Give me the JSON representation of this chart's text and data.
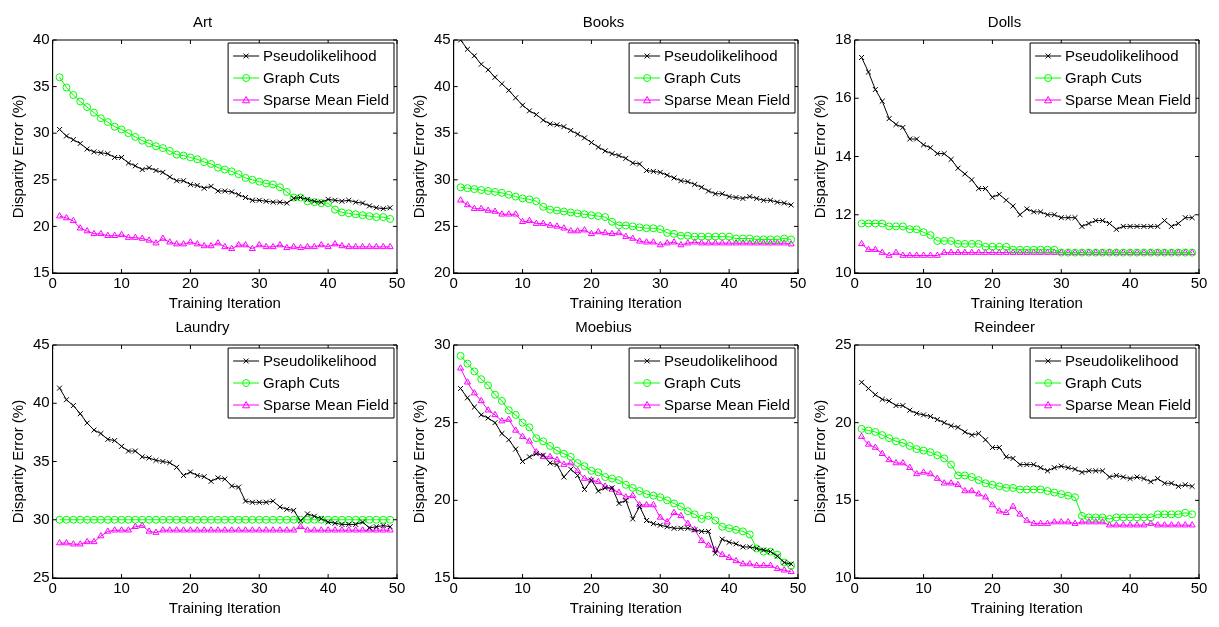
{
  "chart_data": [
    {
      "type": "line",
      "title": "Art",
      "xlabel": "Training Iteration",
      "ylabel": "Disparity Error (%)",
      "x": [
        1,
        2,
        3,
        4,
        5,
        6,
        7,
        8,
        9,
        10,
        11,
        12,
        13,
        14,
        15,
        16,
        17,
        18,
        19,
        20,
        21,
        22,
        23,
        24,
        25,
        26,
        27,
        28,
        29,
        30,
        31,
        32,
        33,
        34,
        35,
        36,
        37,
        38,
        39,
        40,
        41,
        42,
        43,
        44,
        45,
        46,
        47,
        48,
        49
      ],
      "xlim": [
        0,
        50
      ],
      "xticks": [
        0,
        10,
        20,
        30,
        40,
        50
      ],
      "ylim": [
        15,
        40
      ],
      "yticks": [
        15,
        20,
        25,
        30,
        35,
        40
      ],
      "legend": "top right",
      "series": [
        {
          "name": "Pseudolikelihood",
          "color": "#000000",
          "marker": "cross",
          "values": [
            30.4,
            29.7,
            29.3,
            28.9,
            28.3,
            28.0,
            27.9,
            27.8,
            27.4,
            27.4,
            26.8,
            26.5,
            26.1,
            26.3,
            26.0,
            25.8,
            25.3,
            24.9,
            24.9,
            24.5,
            24.4,
            24.1,
            24.3,
            23.8,
            23.8,
            23.7,
            23.4,
            23.1,
            22.8,
            22.8,
            22.7,
            22.6,
            22.6,
            22.5,
            23.0,
            23.1,
            22.9,
            22.7,
            22.6,
            22.9,
            22.8,
            22.7,
            22.8,
            22.6,
            22.5,
            22.2,
            22.0,
            21.9,
            22.0
          ]
        },
        {
          "name": "Graph Cuts",
          "color": "#00ff00",
          "marker": "circle",
          "values": [
            36.0,
            34.9,
            34.1,
            33.4,
            32.8,
            32.2,
            31.6,
            31.2,
            30.7,
            30.4,
            30.0,
            29.6,
            29.2,
            28.9,
            28.6,
            28.4,
            28.1,
            27.7,
            27.6,
            27.4,
            27.2,
            26.9,
            26.7,
            26.3,
            26.1,
            25.9,
            25.6,
            25.2,
            25.0,
            24.8,
            24.6,
            24.5,
            24.2,
            23.7,
            23.1,
            23.1,
            22.7,
            22.6,
            22.5,
            22.5,
            21.8,
            21.5,
            21.4,
            21.3,
            21.2,
            21.1,
            21.0,
            21.0,
            20.8
          ]
        },
        {
          "name": "Sparse Mean Field",
          "color": "#ff00ff",
          "marker": "triangle",
          "values": [
            21.1,
            20.9,
            20.6,
            19.8,
            19.5,
            19.2,
            19.2,
            19.0,
            19.0,
            19.1,
            18.8,
            18.8,
            18.7,
            18.5,
            18.2,
            18.7,
            18.3,
            18.1,
            18.1,
            18.3,
            18.1,
            17.9,
            17.9,
            18.2,
            17.8,
            17.6,
            18.0,
            18.0,
            17.6,
            18.0,
            17.8,
            17.8,
            18.0,
            17.7,
            17.8,
            17.7,
            17.8,
            17.8,
            18.0,
            17.8,
            18.1,
            17.9,
            17.8,
            17.8,
            17.8,
            17.8,
            17.8,
            17.8,
            17.8
          ]
        }
      ]
    },
    {
      "type": "line",
      "title": "Books",
      "xlabel": "Training Iteration",
      "ylabel": "Disparity Error (%)",
      "x": [
        1,
        2,
        3,
        4,
        5,
        6,
        7,
        8,
        9,
        10,
        11,
        12,
        13,
        14,
        15,
        16,
        17,
        18,
        19,
        20,
        21,
        22,
        23,
        24,
        25,
        26,
        27,
        28,
        29,
        30,
        31,
        32,
        33,
        34,
        35,
        36,
        37,
        38,
        39,
        40,
        41,
        42,
        43,
        44,
        45,
        46,
        47,
        48,
        49
      ],
      "xlim": [
        0,
        50
      ],
      "xticks": [
        0,
        10,
        20,
        30,
        40,
        50
      ],
      "ylim": [
        20,
        45
      ],
      "yticks": [
        20,
        25,
        30,
        35,
        40,
        45
      ],
      "legend": "top right",
      "series": [
        {
          "name": "Pseudolikelihood",
          "color": "#000000",
          "marker": "cross",
          "values": [
            45.0,
            44.0,
            43.3,
            42.4,
            41.8,
            41.0,
            40.3,
            39.6,
            38.8,
            38.0,
            37.4,
            37.0,
            36.4,
            36.0,
            35.9,
            35.7,
            35.3,
            34.9,
            34.5,
            34.0,
            33.5,
            33.1,
            32.8,
            32.6,
            32.3,
            31.8,
            31.7,
            31.0,
            30.9,
            30.8,
            30.5,
            30.2,
            29.9,
            29.8,
            29.5,
            29.2,
            28.8,
            28.5,
            28.5,
            28.2,
            28.1,
            28.0,
            28.2,
            28.0,
            27.8,
            27.8,
            27.6,
            27.5,
            27.3
          ]
        },
        {
          "name": "Graph Cuts",
          "color": "#00ff00",
          "marker": "circle",
          "values": [
            29.2,
            29.1,
            29.0,
            28.9,
            28.8,
            28.7,
            28.6,
            28.4,
            28.2,
            28.0,
            27.9,
            27.7,
            27.1,
            26.8,
            26.7,
            26.6,
            26.5,
            26.4,
            26.3,
            26.2,
            26.1,
            26.0,
            25.5,
            25.1,
            25.1,
            25.0,
            24.9,
            24.8,
            24.8,
            24.7,
            24.3,
            24.2,
            24.0,
            24.0,
            23.9,
            23.9,
            23.9,
            23.9,
            23.9,
            23.9,
            23.7,
            23.7,
            23.7,
            23.6,
            23.6,
            23.6,
            23.6,
            23.7,
            23.6
          ]
        },
        {
          "name": "Sparse Mean Field",
          "color": "#ff00ff",
          "marker": "triangle",
          "values": [
            27.8,
            27.3,
            26.9,
            26.9,
            26.7,
            26.6,
            26.3,
            26.3,
            26.3,
            25.5,
            25.6,
            25.3,
            25.3,
            25.1,
            25.0,
            24.8,
            24.5,
            24.5,
            24.6,
            24.2,
            24.4,
            24.3,
            24.2,
            24.3,
            23.9,
            23.7,
            23.4,
            23.3,
            23.3,
            23.0,
            23.2,
            23.3,
            23.0,
            23.2,
            23.3,
            23.2,
            23.2,
            23.2,
            23.2,
            23.2,
            23.2,
            23.2,
            23.2,
            23.2,
            23.2,
            23.2,
            23.2,
            23.2,
            23.1
          ]
        }
      ]
    },
    {
      "type": "line",
      "title": "Dolls",
      "xlabel": "Training Iteration",
      "ylabel": "Disparity Error (%)",
      "x": [
        1,
        2,
        3,
        4,
        5,
        6,
        7,
        8,
        9,
        10,
        11,
        12,
        13,
        14,
        15,
        16,
        17,
        18,
        19,
        20,
        21,
        22,
        23,
        24,
        25,
        26,
        27,
        28,
        29,
        30,
        31,
        32,
        33,
        34,
        35,
        36,
        37,
        38,
        39,
        40,
        41,
        42,
        43,
        44,
        45,
        46,
        47,
        48,
        49
      ],
      "xlim": [
        0,
        50
      ],
      "xticks": [
        0,
        10,
        20,
        30,
        40,
        50
      ],
      "ylim": [
        10,
        18
      ],
      "yticks": [
        10,
        12,
        14,
        16,
        18
      ],
      "legend": "top right",
      "series": [
        {
          "name": "Pseudolikelihood",
          "color": "#000000",
          "marker": "cross",
          "values": [
            17.4,
            16.9,
            16.3,
            15.9,
            15.3,
            15.1,
            15.0,
            14.6,
            14.6,
            14.4,
            14.3,
            14.1,
            14.1,
            13.9,
            13.6,
            13.4,
            13.2,
            12.9,
            12.9,
            12.6,
            12.7,
            12.5,
            12.3,
            12.0,
            12.2,
            12.1,
            12.1,
            12.0,
            12.0,
            11.9,
            11.9,
            11.9,
            11.6,
            11.7,
            11.8,
            11.8,
            11.7,
            11.5,
            11.6,
            11.6,
            11.6,
            11.6,
            11.6,
            11.6,
            11.8,
            11.6,
            11.7,
            11.9,
            11.9
          ]
        },
        {
          "name": "Graph Cuts",
          "color": "#00ff00",
          "marker": "circle",
          "values": [
            11.7,
            11.7,
            11.7,
            11.7,
            11.6,
            11.6,
            11.6,
            11.5,
            11.5,
            11.4,
            11.3,
            11.1,
            11.1,
            11.1,
            11.0,
            11.0,
            11.0,
            11.0,
            10.9,
            10.9,
            10.9,
            10.9,
            10.8,
            10.8,
            10.8,
            10.8,
            10.8,
            10.8,
            10.8,
            10.7,
            10.7,
            10.7,
            10.7,
            10.7,
            10.7,
            10.7,
            10.7,
            10.7,
            10.7,
            10.7,
            10.7,
            10.7,
            10.7,
            10.7,
            10.7,
            10.7,
            10.7,
            10.7,
            10.7
          ]
        },
        {
          "name": "Sparse Mean Field",
          "color": "#ff00ff",
          "marker": "triangle",
          "values": [
            11.0,
            10.8,
            10.8,
            10.7,
            10.6,
            10.7,
            10.6,
            10.6,
            10.6,
            10.6,
            10.6,
            10.6,
            10.7,
            10.7,
            10.7,
            10.7,
            10.7,
            10.7,
            10.7,
            10.7,
            10.7,
            10.7,
            10.7,
            10.7,
            10.7,
            10.7,
            10.7,
            10.7,
            10.7,
            10.7,
            10.7,
            10.7,
            10.7,
            10.7,
            10.7,
            10.7,
            10.7,
            10.7,
            10.7,
            10.7,
            10.7,
            10.7,
            10.7,
            10.7,
            10.7,
            10.7,
            10.7,
            10.7,
            10.7
          ]
        }
      ]
    },
    {
      "type": "line",
      "title": "Laundry",
      "xlabel": "Training Iteration",
      "ylabel": "Disparity Error (%)",
      "x": [
        1,
        2,
        3,
        4,
        5,
        6,
        7,
        8,
        9,
        10,
        11,
        12,
        13,
        14,
        15,
        16,
        17,
        18,
        19,
        20,
        21,
        22,
        23,
        24,
        25,
        26,
        27,
        28,
        29,
        30,
        31,
        32,
        33,
        34,
        35,
        36,
        37,
        38,
        39,
        40,
        41,
        42,
        43,
        44,
        45,
        46,
        47,
        48,
        49
      ],
      "xlim": [
        0,
        50
      ],
      "xticks": [
        0,
        10,
        20,
        30,
        40,
        50
      ],
      "ylim": [
        25,
        45
      ],
      "yticks": [
        25,
        30,
        35,
        40,
        45
      ],
      "legend": "top right",
      "series": [
        {
          "name": "Pseudolikelihood",
          "color": "#000000",
          "marker": "cross",
          "values": [
            41.3,
            40.3,
            39.8,
            39.1,
            38.3,
            37.7,
            37.4,
            36.9,
            36.8,
            36.3,
            35.9,
            35.9,
            35.4,
            35.3,
            35.1,
            35.0,
            34.9,
            34.5,
            33.8,
            34.1,
            33.8,
            33.7,
            33.3,
            33.6,
            33.5,
            32.9,
            32.8,
            31.6,
            31.5,
            31.5,
            31.5,
            31.6,
            31.1,
            30.9,
            30.8,
            29.9,
            30.5,
            30.3,
            30.1,
            29.8,
            29.7,
            29.6,
            29.6,
            29.6,
            29.8,
            29.3,
            29.4,
            29.5,
            29.4
          ]
        },
        {
          "name": "Graph Cuts",
          "color": "#00ff00",
          "marker": "circle",
          "values": [
            30.0,
            30.0,
            30.0,
            30.0,
            30.0,
            30.0,
            30.0,
            30.0,
            30.0,
            30.0,
            30.0,
            30.0,
            30.0,
            30.0,
            30.0,
            30.0,
            30.0,
            30.0,
            30.0,
            30.0,
            30.0,
            30.0,
            30.0,
            30.0,
            30.0,
            30.0,
            30.0,
            30.0,
            30.0,
            30.0,
            30.0,
            30.0,
            30.0,
            30.0,
            30.0,
            30.0,
            30.0,
            30.0,
            30.0,
            30.0,
            30.0,
            30.0,
            30.0,
            30.0,
            30.0,
            30.0,
            30.0,
            30.0,
            30.0
          ]
        },
        {
          "name": "Sparse Mean Field",
          "color": "#ff00ff",
          "marker": "triangle",
          "values": [
            28.0,
            28.0,
            27.9,
            27.9,
            28.1,
            28.1,
            28.6,
            29.0,
            29.1,
            29.1,
            29.1,
            29.4,
            29.5,
            29.0,
            28.9,
            29.1,
            29.1,
            29.1,
            29.1,
            29.1,
            29.1,
            29.1,
            29.1,
            29.1,
            29.1,
            29.1,
            29.1,
            29.1,
            29.1,
            29.1,
            29.1,
            29.1,
            29.1,
            29.1,
            29.1,
            29.4,
            29.1,
            29.1,
            29.1,
            29.1,
            29.1,
            29.1,
            29.1,
            29.1,
            29.1,
            29.1,
            29.1,
            29.1,
            29.1
          ]
        }
      ]
    },
    {
      "type": "line",
      "title": "Moebius",
      "xlabel": "Training Iteration",
      "ylabel": "Disparity Error (%)",
      "x": [
        1,
        2,
        3,
        4,
        5,
        6,
        7,
        8,
        9,
        10,
        11,
        12,
        13,
        14,
        15,
        16,
        17,
        18,
        19,
        20,
        21,
        22,
        23,
        24,
        25,
        26,
        27,
        28,
        29,
        30,
        31,
        32,
        33,
        34,
        35,
        36,
        37,
        38,
        39,
        40,
        41,
        42,
        43,
        44,
        45,
        46,
        47,
        48,
        49
      ],
      "xlim": [
        0,
        50
      ],
      "xticks": [
        0,
        10,
        20,
        30,
        40,
        50
      ],
      "ylim": [
        15,
        30
      ],
      "yticks": [
        15,
        20,
        25,
        30
      ],
      "legend": "top right",
      "series": [
        {
          "name": "Pseudolikelihood",
          "color": "#000000",
          "marker": "cross",
          "values": [
            27.2,
            26.6,
            26.0,
            25.5,
            25.3,
            25.0,
            24.3,
            23.9,
            23.3,
            22.5,
            22.8,
            23.0,
            22.9,
            22.4,
            22.3,
            21.5,
            22.0,
            21.6,
            20.7,
            21.3,
            20.6,
            20.8,
            20.8,
            19.8,
            20.0,
            18.8,
            19.6,
            18.7,
            18.5,
            18.4,
            18.3,
            18.2,
            18.2,
            18.2,
            18.1,
            18.0,
            18.0,
            16.6,
            17.5,
            17.3,
            17.2,
            17.0,
            17.0,
            16.9,
            16.8,
            16.7,
            16.4,
            16.0,
            15.9
          ]
        },
        {
          "name": "Graph Cuts",
          "color": "#00ff00",
          "marker": "circle",
          "values": [
            29.3,
            28.8,
            28.3,
            27.8,
            27.4,
            26.8,
            26.4,
            25.8,
            25.5,
            25.0,
            24.7,
            24.0,
            23.8,
            23.5,
            23.2,
            23.0,
            22.8,
            22.4,
            22.2,
            21.9,
            21.8,
            21.5,
            21.4,
            21.3,
            21.0,
            20.8,
            20.6,
            20.4,
            20.3,
            20.2,
            20.0,
            19.8,
            19.6,
            19.3,
            19.1,
            18.8,
            19.0,
            18.7,
            18.3,
            18.2,
            18.1,
            18.0,
            17.8,
            16.9,
            16.7,
            16.7,
            16.5,
            16.0,
            15.8
          ]
        },
        {
          "name": "Sparse Mean Field",
          "color": "#ff00ff",
          "marker": "triangle",
          "values": [
            28.5,
            27.6,
            26.9,
            26.4,
            25.8,
            25.5,
            25.1,
            25.2,
            24.5,
            24.1,
            23.8,
            23.1,
            22.8,
            22.8,
            22.6,
            22.3,
            22.4,
            21.9,
            21.4,
            21.3,
            21.2,
            20.9,
            20.7,
            20.5,
            20.2,
            20.3,
            19.7,
            19.7,
            19.7,
            18.9,
            18.6,
            19.2,
            19.0,
            18.5,
            18.1,
            17.4,
            17.1,
            16.8,
            16.5,
            16.3,
            16.1,
            15.9,
            15.9,
            15.8,
            15.8,
            15.8,
            15.6,
            15.5,
            15.4
          ]
        }
      ]
    },
    {
      "type": "line",
      "title": "Reindeer",
      "xlabel": "Training Iteration",
      "ylabel": "Disparity Error (%)",
      "x": [
        1,
        2,
        3,
        4,
        5,
        6,
        7,
        8,
        9,
        10,
        11,
        12,
        13,
        14,
        15,
        16,
        17,
        18,
        19,
        20,
        21,
        22,
        23,
        24,
        25,
        26,
        27,
        28,
        29,
        30,
        31,
        32,
        33,
        34,
        35,
        36,
        37,
        38,
        39,
        40,
        41,
        42,
        43,
        44,
        45,
        46,
        47,
        48,
        49
      ],
      "xlim": [
        0,
        50
      ],
      "xticks": [
        0,
        10,
        20,
        30,
        40,
        50
      ],
      "ylim": [
        10,
        25
      ],
      "yticks": [
        10,
        15,
        20,
        25
      ],
      "legend": "top right",
      "series": [
        {
          "name": "Pseudolikelihood",
          "color": "#000000",
          "marker": "cross",
          "values": [
            22.6,
            22.2,
            21.8,
            21.5,
            21.4,
            21.1,
            21.1,
            20.8,
            20.6,
            20.5,
            20.4,
            20.2,
            20.0,
            19.8,
            19.7,
            19.4,
            19.2,
            19.3,
            18.9,
            18.4,
            18.4,
            17.8,
            17.7,
            17.3,
            17.3,
            17.3,
            17.1,
            16.9,
            17.1,
            17.2,
            17.1,
            17.0,
            16.8,
            16.9,
            16.9,
            16.9,
            16.5,
            16.6,
            16.5,
            16.4,
            16.5,
            16.4,
            16.2,
            16.4,
            16.1,
            16.1,
            15.9,
            16.0,
            15.9
          ]
        },
        {
          "name": "Graph Cuts",
          "color": "#00ff00",
          "marker": "circle",
          "values": [
            19.6,
            19.5,
            19.4,
            19.2,
            19.0,
            18.8,
            18.7,
            18.5,
            18.3,
            18.2,
            18.1,
            17.9,
            17.7,
            17.3,
            16.6,
            16.6,
            16.5,
            16.3,
            16.1,
            16.0,
            15.9,
            15.8,
            15.8,
            15.7,
            15.7,
            15.7,
            15.7,
            15.6,
            15.5,
            15.4,
            15.3,
            15.2,
            14.0,
            13.9,
            13.9,
            13.9,
            13.8,
            13.9,
            13.9,
            13.9,
            13.9,
            13.9,
            13.9,
            14.1,
            14.1,
            14.1,
            14.1,
            14.2,
            14.1
          ]
        },
        {
          "name": "Sparse Mean Field",
          "color": "#ff00ff",
          "marker": "triangle",
          "values": [
            19.1,
            18.6,
            18.4,
            18.0,
            17.6,
            17.4,
            17.4,
            17.1,
            16.7,
            16.8,
            16.7,
            16.4,
            16.1,
            16.1,
            16.0,
            15.6,
            15.6,
            15.4,
            15.2,
            14.7,
            14.3,
            14.2,
            14.6,
            14.1,
            13.7,
            13.5,
            13.5,
            13.5,
            13.6,
            13.6,
            13.6,
            13.5,
            13.6,
            13.6,
            13.6,
            13.6,
            13.4,
            13.4,
            13.4,
            13.4,
            13.4,
            13.4,
            13.5,
            13.4,
            13.4,
            13.4,
            13.4,
            13.4,
            13.4
          ]
        }
      ]
    }
  ]
}
